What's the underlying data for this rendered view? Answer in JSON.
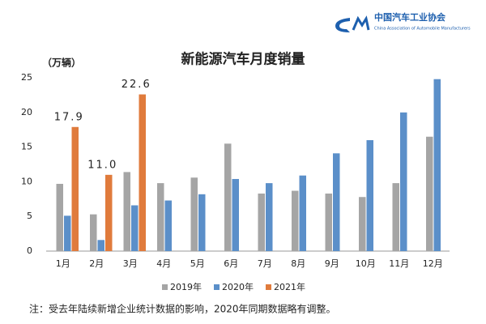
{
  "header": {
    "logo_title": "中国汽车工业协会",
    "logo_subtitle": "China Association of Automobile Manufacturers"
  },
  "chart_data": {
    "type": "bar",
    "title": "新能源汽车月度销量",
    "y_label": "（万辆）",
    "categories": [
      "1月",
      "2月",
      "3月",
      "4月",
      "5月",
      "6月",
      "7月",
      "8月",
      "9月",
      "10月",
      "11月",
      "12月"
    ],
    "series": [
      {
        "name": "2019年",
        "color": "#a5a5a5",
        "values": [
          9.7,
          5.3,
          11.4,
          9.8,
          10.6,
          15.5,
          8.3,
          8.7,
          8.3,
          7.8,
          9.8,
          16.5
        ]
      },
      {
        "name": "2020年",
        "color": "#5b8fc9",
        "values": [
          5.1,
          1.6,
          6.6,
          7.3,
          8.2,
          10.4,
          9.8,
          10.9,
          14.1,
          16.0,
          20.0,
          24.8
        ]
      },
      {
        "name": "2021年",
        "color": "#e07b3c",
        "values": [
          17.9,
          11.0,
          22.6,
          null,
          null,
          null,
          null,
          null,
          null,
          null,
          null,
          null
        ],
        "value_labels": [
          "17.9",
          "11.0",
          "22.6",
          null,
          null,
          null,
          null,
          null,
          null,
          null,
          null,
          null
        ]
      }
    ],
    "ylim": [
      0,
      25
    ],
    "yticks": [
      0,
      5,
      10,
      15,
      20,
      25
    ],
    "grid": false,
    "note": "注：受去年陆续新增企业统计数据的影响，2020年同期数据略有调整。"
  }
}
